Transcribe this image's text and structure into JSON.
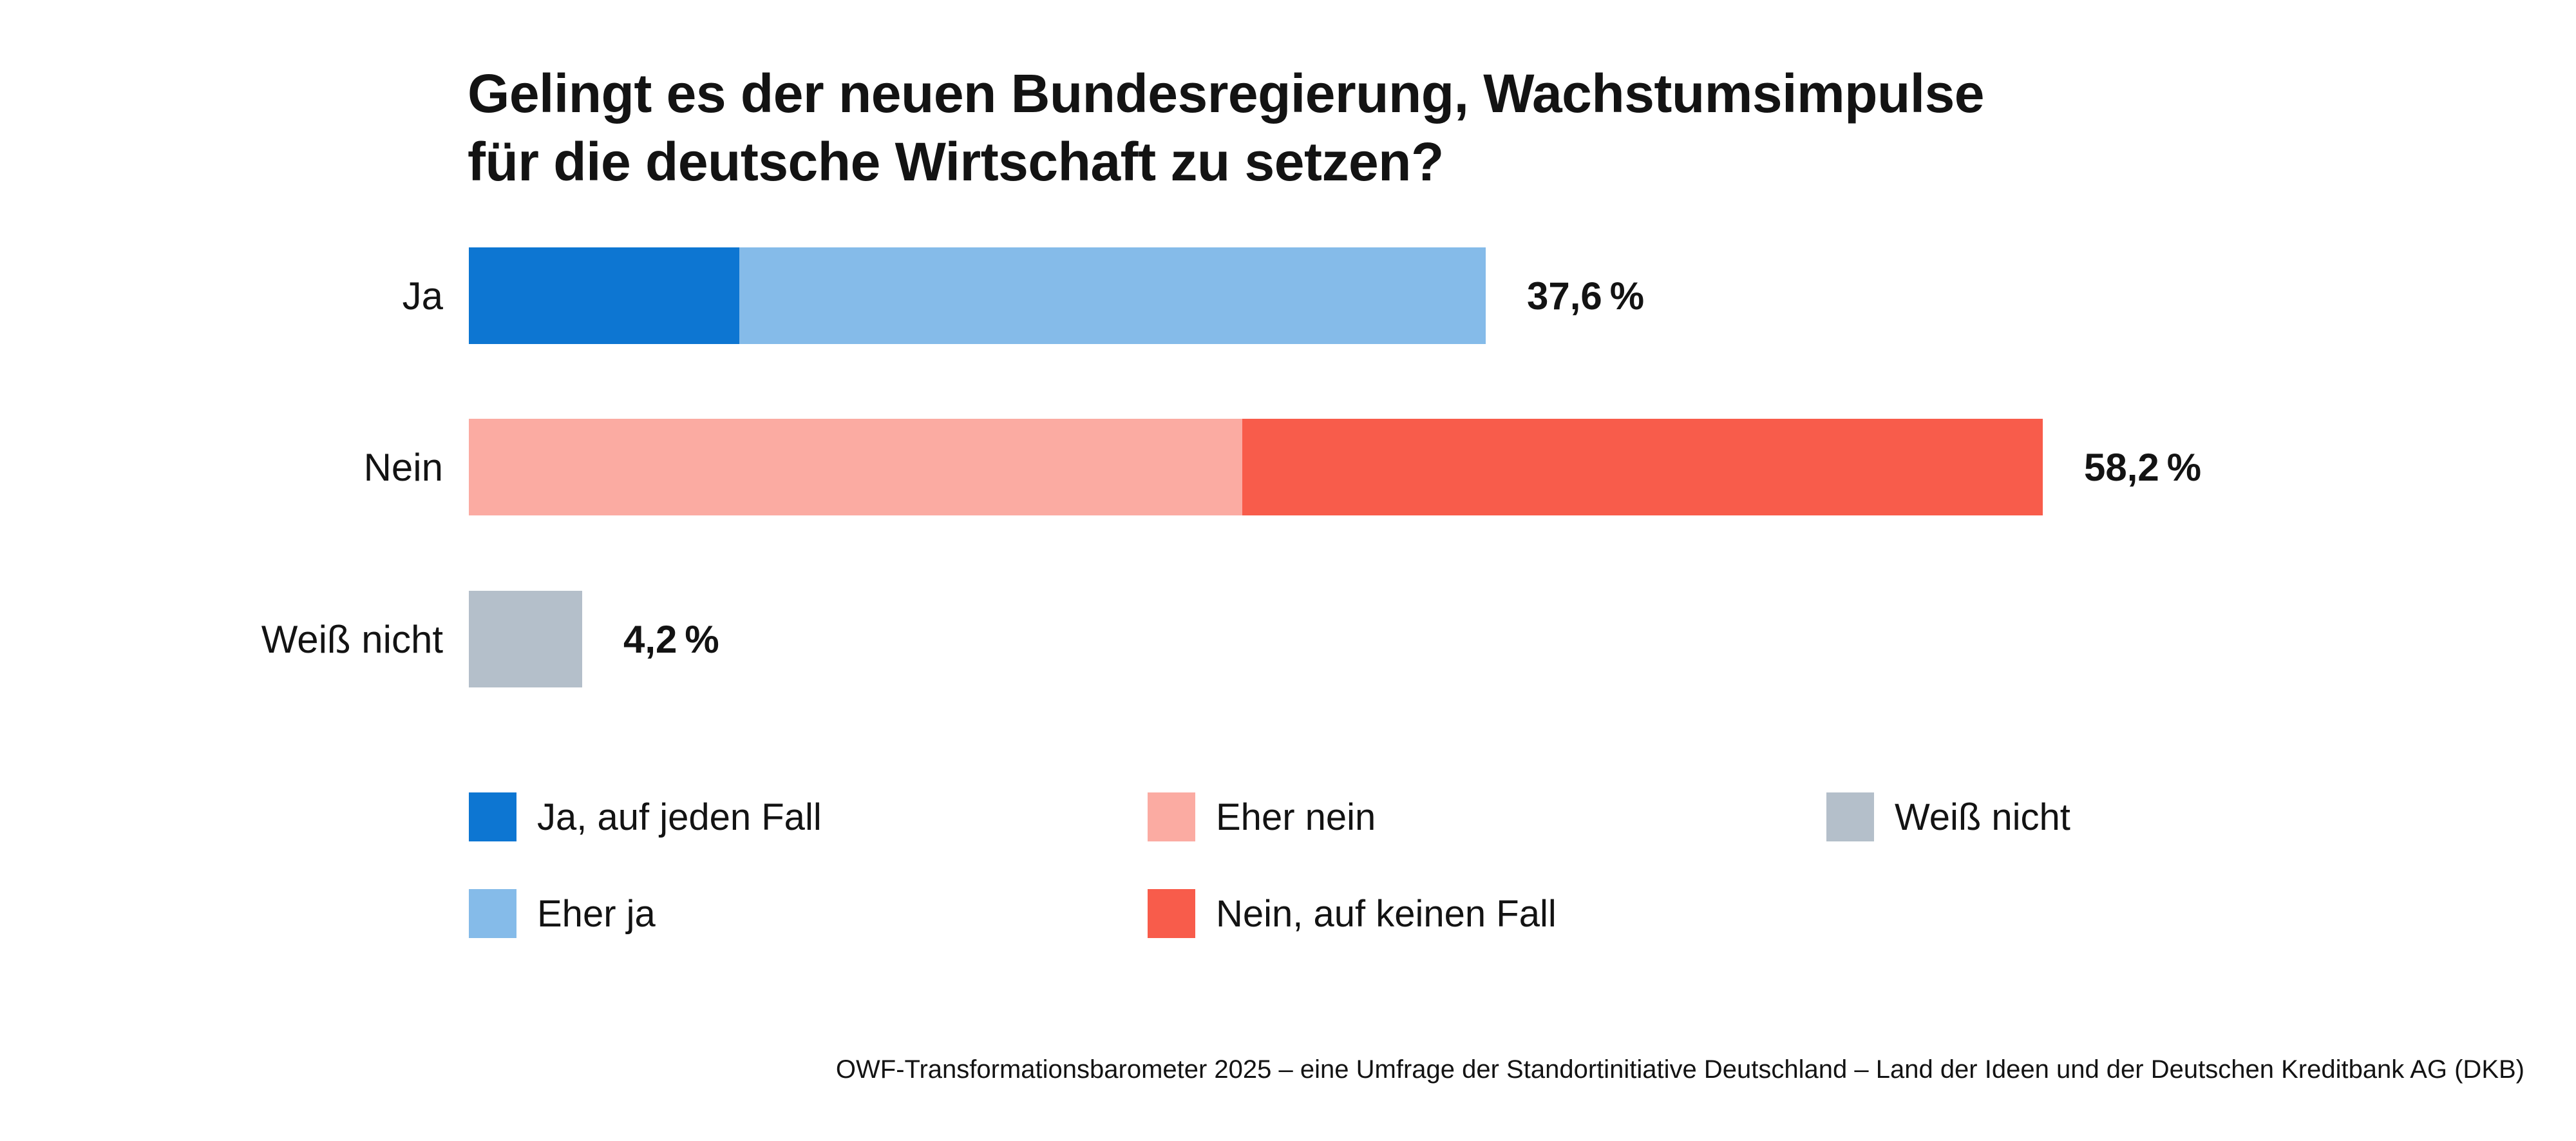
{
  "title": {
    "line1": "Gelingt es der neuen Bundesregierung, Wachstumsimpulse",
    "line2": "für die deutsche Wirtschaft zu setzen?"
  },
  "colors": {
    "ja_auf_jeden_fall": "#0d76d2",
    "eher_ja": "#85bbe9",
    "eher_nein": "#fbaba2",
    "nein_auf_keinen_fall": "#f85c4b",
    "weiss_nicht": "#b4bfca",
    "text": "#131313",
    "background": "#ffffff"
  },
  "chart_data": {
    "type": "bar",
    "orientation": "horizontal",
    "stacked": true,
    "unit": "%",
    "grid": false,
    "legend_position": "bottom",
    "xlim": [
      0,
      60
    ],
    "title": "Gelingt es der neuen Bundesregierung, Wachstumsimpulse für die deutsche Wirtschaft zu setzen?",
    "categories": [
      "Ja",
      "Nein",
      "Weiß nicht"
    ],
    "totals": [
      37.6,
      58.2,
      4.2
    ],
    "total_labels": [
      "37,6 %",
      "58,2 %",
      "4,2 %"
    ],
    "series": [
      {
        "name": "Ja, auf jeden Fall",
        "color": "#0d76d2",
        "values": [
          10.0,
          0,
          0
        ]
      },
      {
        "name": "Eher ja",
        "color": "#85bbe9",
        "values": [
          27.6,
          0,
          0
        ]
      },
      {
        "name": "Eher nein",
        "color": "#fbaba2",
        "values": [
          0,
          28.6,
          0
        ]
      },
      {
        "name": "Nein, auf keinen Fall",
        "color": "#f85c4b",
        "values": [
          0,
          29.6,
          0
        ]
      },
      {
        "name": "Weiß nicht",
        "color": "#b4bfca",
        "values": [
          0,
          0,
          4.2
        ]
      }
    ],
    "rows": [
      {
        "category": "Ja",
        "total": 37.6,
        "total_label": "37,6 %",
        "segments": [
          {
            "name": "Ja, auf jeden Fall",
            "value": 10.0,
            "color": "#0d76d2"
          },
          {
            "name": "Eher ja",
            "value": 27.6,
            "color": "#85bbe9"
          }
        ]
      },
      {
        "category": "Nein",
        "total": 58.2,
        "total_label": "58,2 %",
        "segments": [
          {
            "name": "Eher nein",
            "value": 28.6,
            "color": "#fbaba2"
          },
          {
            "name": "Nein, auf keinen Fall",
            "value": 29.6,
            "color": "#f85c4b"
          }
        ]
      },
      {
        "category": "Weiß nicht",
        "total": 4.2,
        "total_label": "4,2 %",
        "segments": [
          {
            "name": "Weiß nicht",
            "value": 4.2,
            "color": "#b4bfca"
          }
        ]
      }
    ]
  },
  "legend": {
    "rows": [
      [
        {
          "label": "Ja, auf jeden Fall",
          "color": "#0d76d2"
        },
        {
          "label": "Eher nein",
          "color": "#fbaba2"
        },
        {
          "label": "Weiß nicht",
          "color": "#b4bfca"
        }
      ],
      [
        {
          "label": "Eher ja",
          "color": "#85bbe9"
        },
        {
          "label": "Nein, auf keinen Fall",
          "color": "#f85c4b"
        }
      ]
    ]
  },
  "footer": {
    "text": "OWF-Transformationsbarometer 2025 – eine Umfrage der Standortinitiative Deutschland – Land der Ideen und der Deutschen Kreditbank AG (DKB)"
  }
}
